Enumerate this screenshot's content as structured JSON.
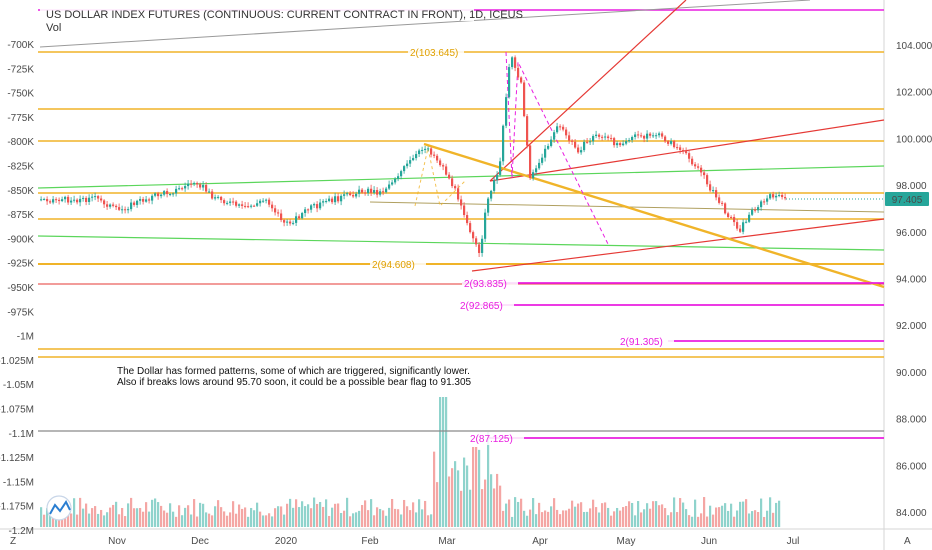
{
  "title": "US DOLLAR INDEX FUTURES (CONTINUOUS: CURRENT CONTRACT IN FRONT), 1D, ICEUS",
  "volume_label": "Vol",
  "current_price": "97.405",
  "annotation_lines": [
    "The Dollar has formed patterns, some of which are triggered, significantly lower.",
    "Also if breaks lows around 95.70 soon, it could be a possible bear flag to 91.305"
  ],
  "corner_left": "Z",
  "corner_right": "A",
  "colors": {
    "up": "#26a69a",
    "down": "#ef5350",
    "gold": "#f0b429",
    "magenta": "#e91ee0",
    "red_line": "#e53935",
    "green_line": "#5bd65b",
    "price_tag": "#26a69a"
  },
  "chart_data": {
    "type": "candlestick",
    "title": "US DOLLAR INDEX FUTURES (CONTINUOUS: CURRENT CONTRACT IN FRONT), 1D, ICEUS",
    "right_axis_ticks": [
      "104.000",
      "102.000",
      "100.000",
      "98.000",
      "96.000",
      "94.000",
      "92.000",
      "90.000",
      "88.000",
      "86.000",
      "84.000"
    ],
    "left_axis_ticks": [
      "-700K",
      "-725K",
      "-750K",
      "-775K",
      "-800K",
      "-825K",
      "-850K",
      "-875K",
      "-900K",
      "-925K",
      "-950K",
      "-975K",
      "-1M",
      "-1.025M",
      "-1.05M",
      "-1.075M",
      "-1.1M",
      "-1.125M",
      "-1.15M",
      "-1.175M",
      "-1.2M"
    ],
    "x_ticks": [
      "Nov",
      "Dec",
      "2020",
      "Feb",
      "Mar",
      "Apr",
      "May",
      "Jun",
      "Jul"
    ],
    "ylim": [
      83.2,
      105.6
    ],
    "close_path": [
      [
        "2019-10-21",
        97.6
      ],
      [
        "2019-10-28",
        97.2
      ],
      [
        "2019-11-01",
        96.9
      ],
      [
        "2019-11-08",
        97.3
      ],
      [
        "2019-11-15",
        97.6
      ],
      [
        "2019-11-22",
        97.8
      ],
      [
        "2019-11-29",
        98.2
      ],
      [
        "2019-12-04",
        97.6
      ],
      [
        "2019-12-10",
        97.3
      ],
      [
        "2019-12-16",
        97.0
      ],
      [
        "2019-12-24",
        97.4
      ],
      [
        "2019-12-31",
        96.3
      ],
      [
        "2020-01-08",
        97.0
      ],
      [
        "2020-01-14",
        97.3
      ],
      [
        "2020-01-20",
        97.5
      ],
      [
        "2020-01-28",
        97.8
      ],
      [
        "2020-02-03",
        97.7
      ],
      [
        "2020-02-10",
        98.6
      ],
      [
        "2020-02-19",
        99.7
      ],
      [
        "2020-02-25",
        98.8
      ],
      [
        "2020-03-02",
        97.4
      ],
      [
        "2020-03-06",
        96.0
      ],
      [
        "2020-03-09",
        95.0
      ],
      [
        "2020-03-12",
        97.5
      ],
      [
        "2020-03-16",
        98.6
      ],
      [
        "2020-03-19",
        102.4
      ],
      [
        "2020-03-20",
        103.6
      ],
      [
        "2020-03-24",
        102.4
      ],
      [
        "2020-03-27",
        98.4
      ],
      [
        "2020-03-31",
        99.1
      ],
      [
        "2020-04-06",
        100.6
      ],
      [
        "2020-04-13",
        99.5
      ],
      [
        "2020-04-20",
        100.2
      ],
      [
        "2020-04-27",
        99.8
      ],
      [
        "2020-05-04",
        100.1
      ],
      [
        "2020-05-11",
        100.2
      ],
      [
        "2020-05-18",
        99.7
      ],
      [
        "2020-05-26",
        98.8
      ],
      [
        "2020-06-01",
        97.6
      ],
      [
        "2020-06-05",
        96.9
      ],
      [
        "2020-06-10",
        96.1
      ],
      [
        "2020-06-15",
        97.0
      ],
      [
        "2020-06-22",
        97.6
      ],
      [
        "2020-06-26",
        97.4
      ]
    ],
    "levels": [
      {
        "label": "2(103.645)",
        "value": 103.645,
        "color": "gold"
      },
      {
        "label": "2(94.608)",
        "value": 94.608,
        "color": "gold"
      },
      {
        "label": "2(93.835)",
        "value": 93.835,
        "color": "magenta"
      },
      {
        "label": "2(92.865)",
        "value": 92.865,
        "color": "magenta"
      },
      {
        "label": "2(91.305)",
        "value": 91.305,
        "color": "magenta"
      },
      {
        "label": "2(87.125)",
        "value": 87.125,
        "color": "magenta"
      }
    ]
  }
}
